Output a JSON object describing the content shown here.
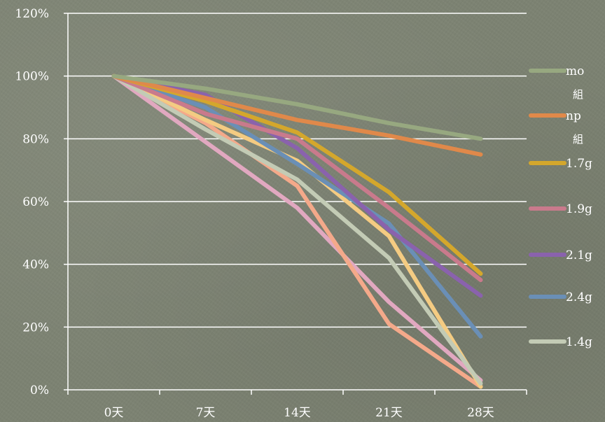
{
  "chart_data": {
    "type": "line",
    "categories": [
      "0天",
      "7天",
      "14天",
      "21天",
      "28天"
    ],
    "yticks": [
      "0%",
      "20%",
      "40%",
      "60%",
      "80%",
      "100%",
      "120%"
    ],
    "ylim": [
      0,
      120
    ],
    "grid": true,
    "legend_position": "right",
    "series": [
      {
        "name": "mo",
        "name_sub": "組",
        "color": "#97a880",
        "x": [
          0,
          7,
          14,
          21,
          28
        ],
        "values": [
          100,
          96,
          91,
          85,
          80
        ]
      },
      {
        "name": "np",
        "name_sub": "組",
        "color": "#e0894a",
        "x": [
          0,
          7,
          14,
          21,
          28
        ],
        "values": [
          100,
          93,
          86,
          81,
          75
        ]
      },
      {
        "name": "1.7g",
        "name_sub": "",
        "color": "#d4a72c",
        "x": [
          0,
          7,
          14,
          21,
          28
        ],
        "values": [
          100,
          92,
          82,
          63,
          37
        ]
      },
      {
        "name": "1.9g",
        "name_sub": "",
        "color": "#c97a8c",
        "x": [
          0,
          7,
          14,
          21,
          28
        ],
        "values": [
          100,
          88,
          80,
          58,
          35
        ]
      },
      {
        "name": "2.1g",
        "name_sub": "",
        "color": "#8a62ad",
        "x": [
          0,
          7,
          14,
          21,
          28
        ],
        "values": [
          100,
          94,
          77,
          51,
          30
        ]
      },
      {
        "name": "2.4g",
        "name_sub": "",
        "color": "#6a8fb6",
        "x": [
          0,
          7,
          14,
          21,
          28
        ],
        "values": [
          100,
          90,
          72,
          53,
          17
        ]
      },
      {
        "name": "1.4g",
        "name_sub": "",
        "color": "#c3cbb5",
        "x": [
          0,
          7,
          14,
          21,
          28
        ],
        "values": [
          100,
          83,
          67,
          42,
          2
        ]
      },
      {
        "name": "",
        "name_sub": "",
        "color": "#f4cb82",
        "x": [
          0,
          7,
          14,
          21,
          28
        ],
        "values": [
          100,
          86,
          73,
          49,
          1
        ]
      },
      {
        "name": "",
        "name_sub": "",
        "color": "#f4a98a",
        "x": [
          0,
          7,
          14,
          21,
          28
        ],
        "values": [
          100,
          85,
          65,
          21,
          1
        ]
      },
      {
        "name": "",
        "name_sub": "",
        "color": "#e1a8c0",
        "x": [
          0,
          7,
          14,
          21,
          28
        ],
        "values": [
          100,
          79,
          58,
          28,
          3
        ]
      }
    ]
  }
}
